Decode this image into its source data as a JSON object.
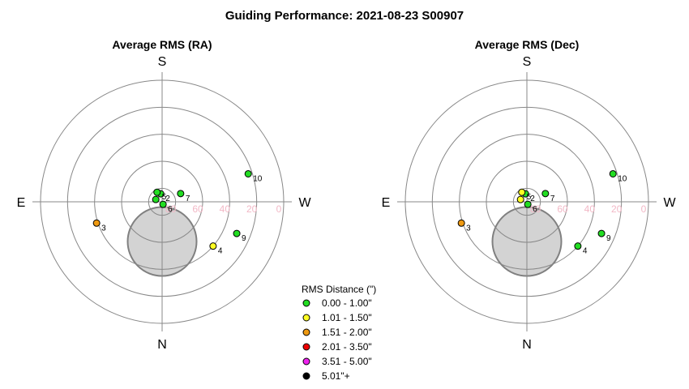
{
  "title": "Guiding Performance: 2021-08-23 S00907",
  "chart_data": [
    {
      "type": "scatter",
      "projection": "polar",
      "title": "Average RMS (RA)",
      "directions": {
        "top": "S",
        "bottom": "N",
        "left": "E",
        "right": "W"
      },
      "radial_ticks": [
        "80",
        "60",
        "40",
        "20",
        "0"
      ],
      "rings_altitude": [
        80,
        60,
        40,
        20,
        0
      ],
      "obstruction_altitude_min": 55,
      "points": [
        {
          "label": "1",
          "az": 250,
          "alt": 85,
          "rms_class": "0.00 - 1.00\""
        },
        {
          "label": "2",
          "az": 190,
          "alt": 84,
          "rms_class": "0.00 - 1.00\""
        },
        {
          "label": "3",
          "az": 288,
          "alt": 39,
          "rms_class": "1.51 - 2.00\""
        },
        {
          "label": "4",
          "az": 49,
          "alt": 40,
          "rms_class": "1.01 - 1.50\""
        },
        {
          "label": "5",
          "az": 208,
          "alt": 82,
          "rms_class": "0.00 - 1.00\""
        },
        {
          "label": "6",
          "az": 20,
          "alt": 88,
          "rms_class": "0.00 - 1.00\""
        },
        {
          "label": "7",
          "az": 114,
          "alt": 75,
          "rms_class": "0.00 - 1.00\""
        },
        {
          "label": "9",
          "az": 67,
          "alt": 30,
          "rms_class": "0.00 - 1.00\""
        },
        {
          "label": "10",
          "az": 108,
          "alt": 23,
          "rms_class": "0.00 - 1.00\""
        }
      ]
    },
    {
      "type": "scatter",
      "projection": "polar",
      "title": "Average RMS (Dec)",
      "directions": {
        "top": "S",
        "bottom": "N",
        "left": "E",
        "right": "W"
      },
      "radial_ticks": [
        "80",
        "60",
        "40",
        "20",
        "0"
      ],
      "rings_altitude": [
        80,
        60,
        40,
        20,
        0
      ],
      "obstruction_altitude_min": 55,
      "points": [
        {
          "label": "1",
          "az": 250,
          "alt": 85,
          "rms_class": "1.01 - 1.50\""
        },
        {
          "label": "2",
          "az": 190,
          "alt": 84,
          "rms_class": "0.00 - 1.00\""
        },
        {
          "label": "3",
          "az": 288,
          "alt": 39,
          "rms_class": "1.51 - 2.00\""
        },
        {
          "label": "4",
          "az": 49,
          "alt": 40,
          "rms_class": "0.00 - 1.00\""
        },
        {
          "label": "5",
          "az": 208,
          "alt": 82,
          "rms_class": "1.01 - 1.50\""
        },
        {
          "label": "6",
          "az": 20,
          "alt": 88,
          "rms_class": "0.00 - 1.00\""
        },
        {
          "label": "7",
          "az": 114,
          "alt": 75,
          "rms_class": "0.00 - 1.00\""
        },
        {
          "label": "9",
          "az": 67,
          "alt": 30,
          "rms_class": "0.00 - 1.00\""
        },
        {
          "label": "10",
          "az": 108,
          "alt": 23,
          "rms_class": "0.00 - 1.00\""
        }
      ]
    }
  ],
  "legend": {
    "title": "RMS Distance (\")",
    "placement": "bottom-center",
    "items": [
      {
        "label": "0.00 - 1.00\"",
        "color": "#22dd22"
      },
      {
        "label": "1.01 - 1.50\"",
        "color": "#ffff22"
      },
      {
        "label": "1.51 - 2.00\"",
        "color": "#ee9911"
      },
      {
        "label": "2.01 - 3.50\"",
        "color": "#ee0000"
      },
      {
        "label": "3.51 - 5.00\"",
        "color": "#ee22ee"
      },
      {
        "label": "5.01\"+",
        "color": "#000000"
      }
    ]
  },
  "colors": {
    "grid": "#888888",
    "obstruction_fill": "#d3d3d3",
    "obstruction_stroke": "#808080",
    "tick_text": "#f2b8c6"
  }
}
